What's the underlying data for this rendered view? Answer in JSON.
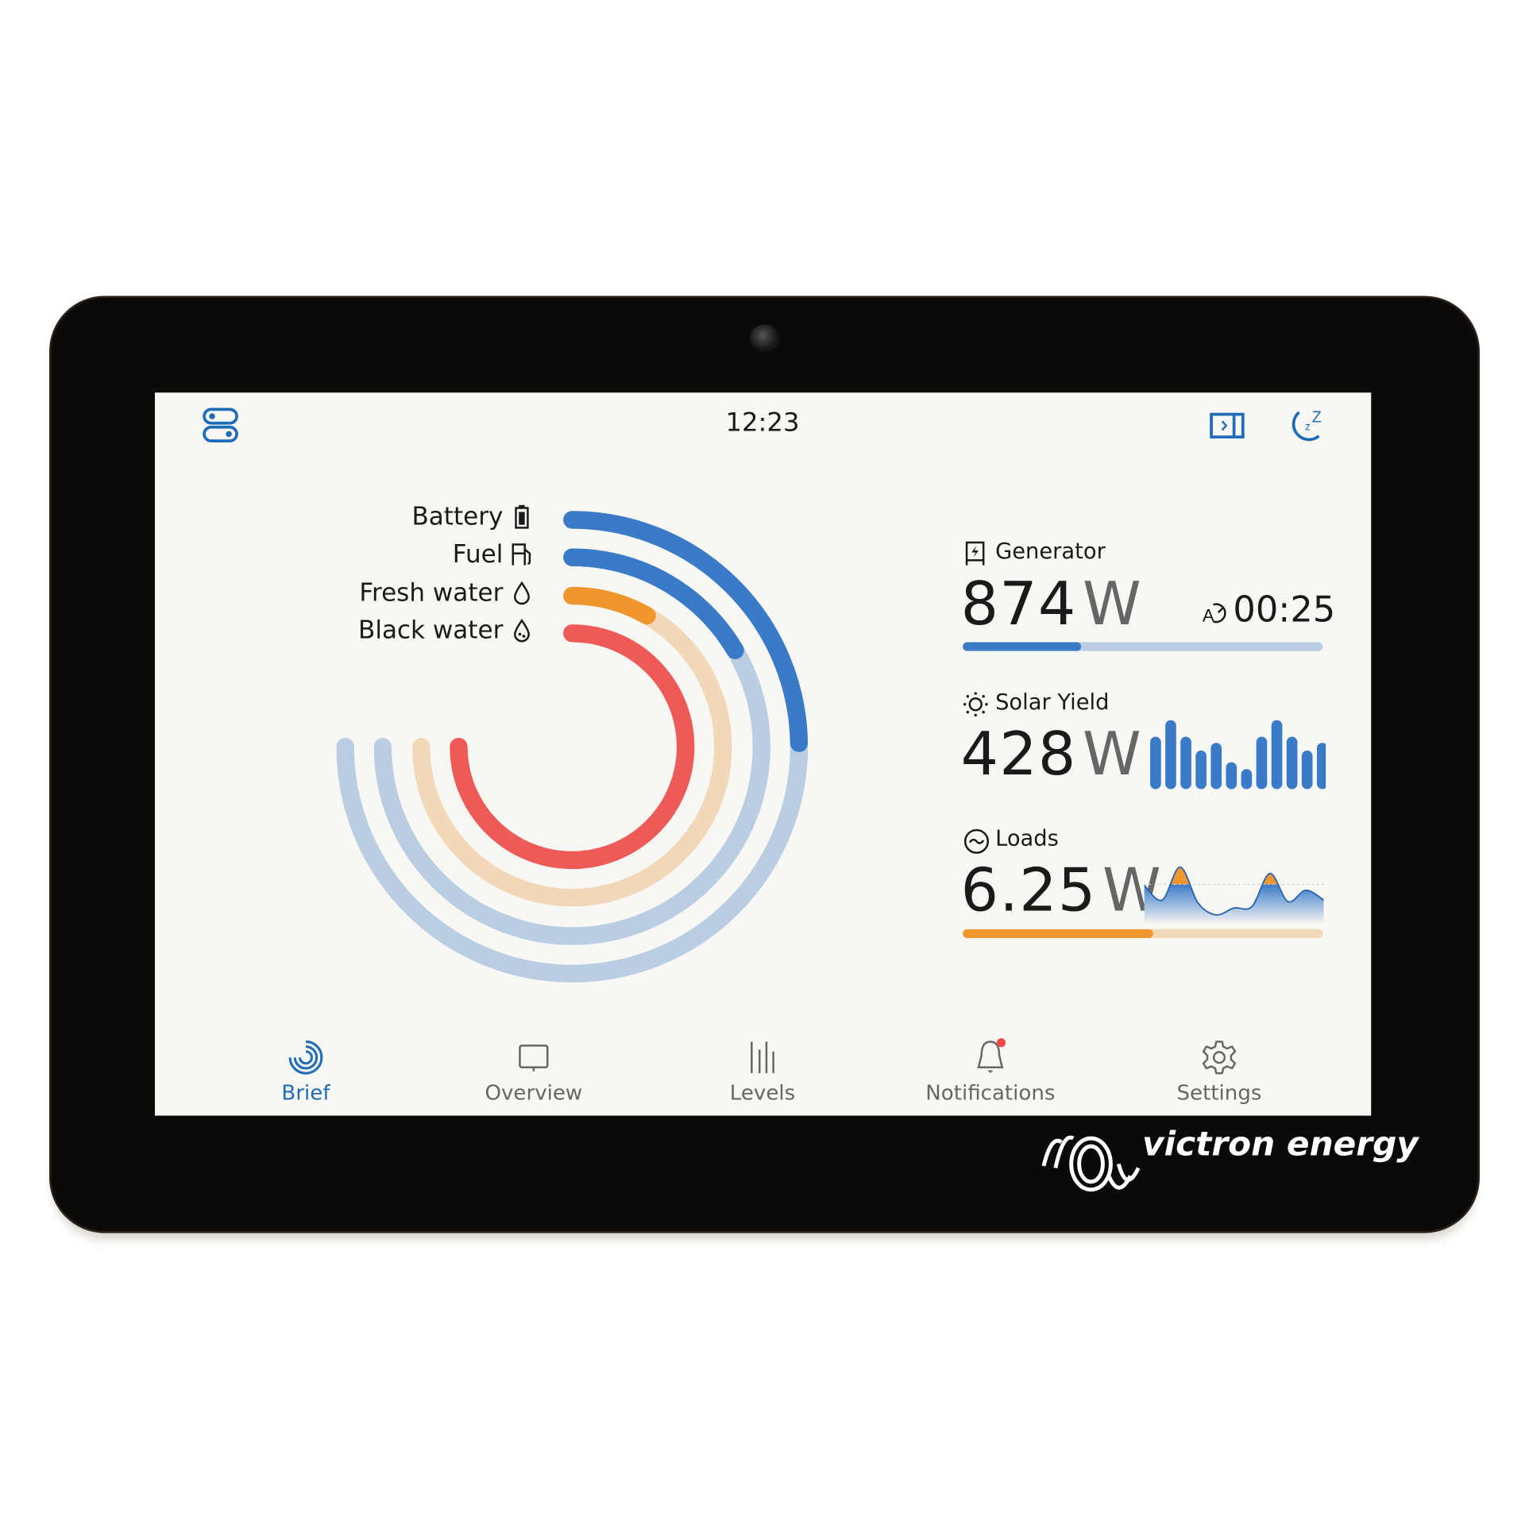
{
  "header": {
    "time": "12:23",
    "left_icon": "toggles-icon",
    "right_icons": [
      "sidebar-panel-icon",
      "sleep-moon-icon"
    ]
  },
  "colors": {
    "blue": "#3a7bc8",
    "blue_track": "#b9cde3",
    "orange": "#f0962e",
    "orange_track": "#f0d8b8",
    "red": "#ee5a57",
    "accent": "#1f6cb8"
  },
  "levels": [
    {
      "label": "Battery",
      "icon": "battery-icon",
      "fill": 0.33,
      "color": "#3a7bc8",
      "track": "#b9cde3"
    },
    {
      "label": "Fuel",
      "icon": "fuel-pump-icon",
      "fill": 0.22,
      "color": "#3a7bc8",
      "track": "#b9cde3"
    },
    {
      "label": "Fresh water",
      "icon": "water-drop-icon",
      "fill": 0.11,
      "color": "#f0962e",
      "track": "#f0d8b8"
    },
    {
      "label": "Black water",
      "icon": "dirty-water-drop-icon",
      "fill": 1.0,
      "color": "#ee5a57",
      "track": "#f4c4c0"
    }
  ],
  "generator": {
    "label": "Generator",
    "value": "874",
    "unit": "W",
    "timer": "00:25",
    "progress": 0.33
  },
  "solar": {
    "label": "Solar Yield",
    "value": "428",
    "unit": "W",
    "bars": [
      0.76,
      1,
      0.76,
      0.56,
      0.67,
      0.39,
      0.29,
      0.76,
      1,
      0.76,
      0.56,
      0.67
    ]
  },
  "loads": {
    "label": "Loads",
    "value": "6.25",
    "unit": "W",
    "progress": 0.53,
    "series": [
      0.63,
      0.33,
      1,
      0.27,
      0.03,
      0.17,
      0.2,
      0.87,
      0.3,
      0.53,
      0.33
    ],
    "threshold": 0.65
  },
  "nav": [
    {
      "label": "Brief",
      "icon": "brief-rings-icon",
      "active": true
    },
    {
      "label": "Overview",
      "icon": "overview-screen-icon"
    },
    {
      "label": "Levels",
      "icon": "levels-bars-icon"
    },
    {
      "label": "Notifications",
      "icon": "bell-icon",
      "badge": true
    },
    {
      "label": "Settings",
      "icon": "gear-icon"
    }
  ],
  "brand": {
    "logo_text": "victron energy"
  }
}
